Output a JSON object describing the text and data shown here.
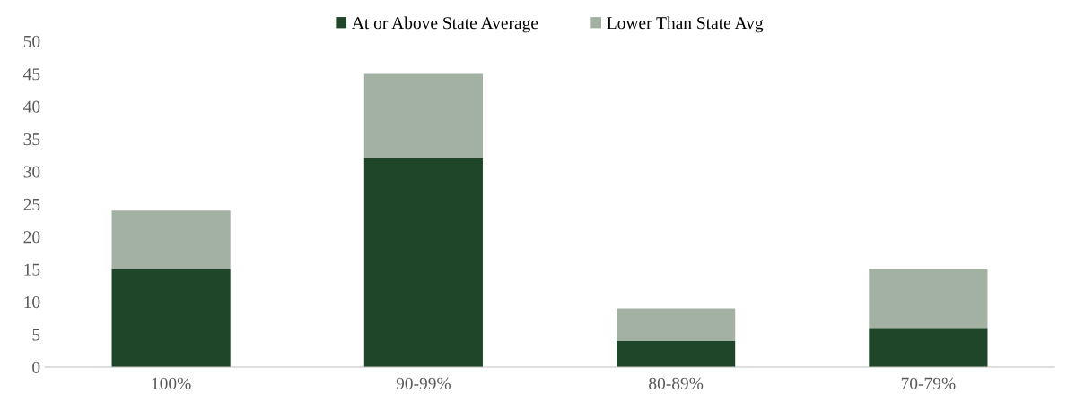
{
  "chart_data": {
    "type": "bar",
    "stacked": true,
    "categories": [
      "100%",
      "90-99%",
      "80-89%",
      "70-79%"
    ],
    "series": [
      {
        "name": "At or Above State Average",
        "color": "#20462a",
        "values": [
          15,
          32,
          4,
          6
        ]
      },
      {
        "name": "Lower Than State Avg",
        "color": "#a3b1a3",
        "values": [
          9,
          13,
          5,
          9
        ]
      }
    ],
    "ylim": [
      0,
      50
    ],
    "yticks": [
      0,
      5,
      10,
      15,
      20,
      25,
      30,
      35,
      40,
      45,
      50
    ],
    "grid": false,
    "legend": "top"
  }
}
